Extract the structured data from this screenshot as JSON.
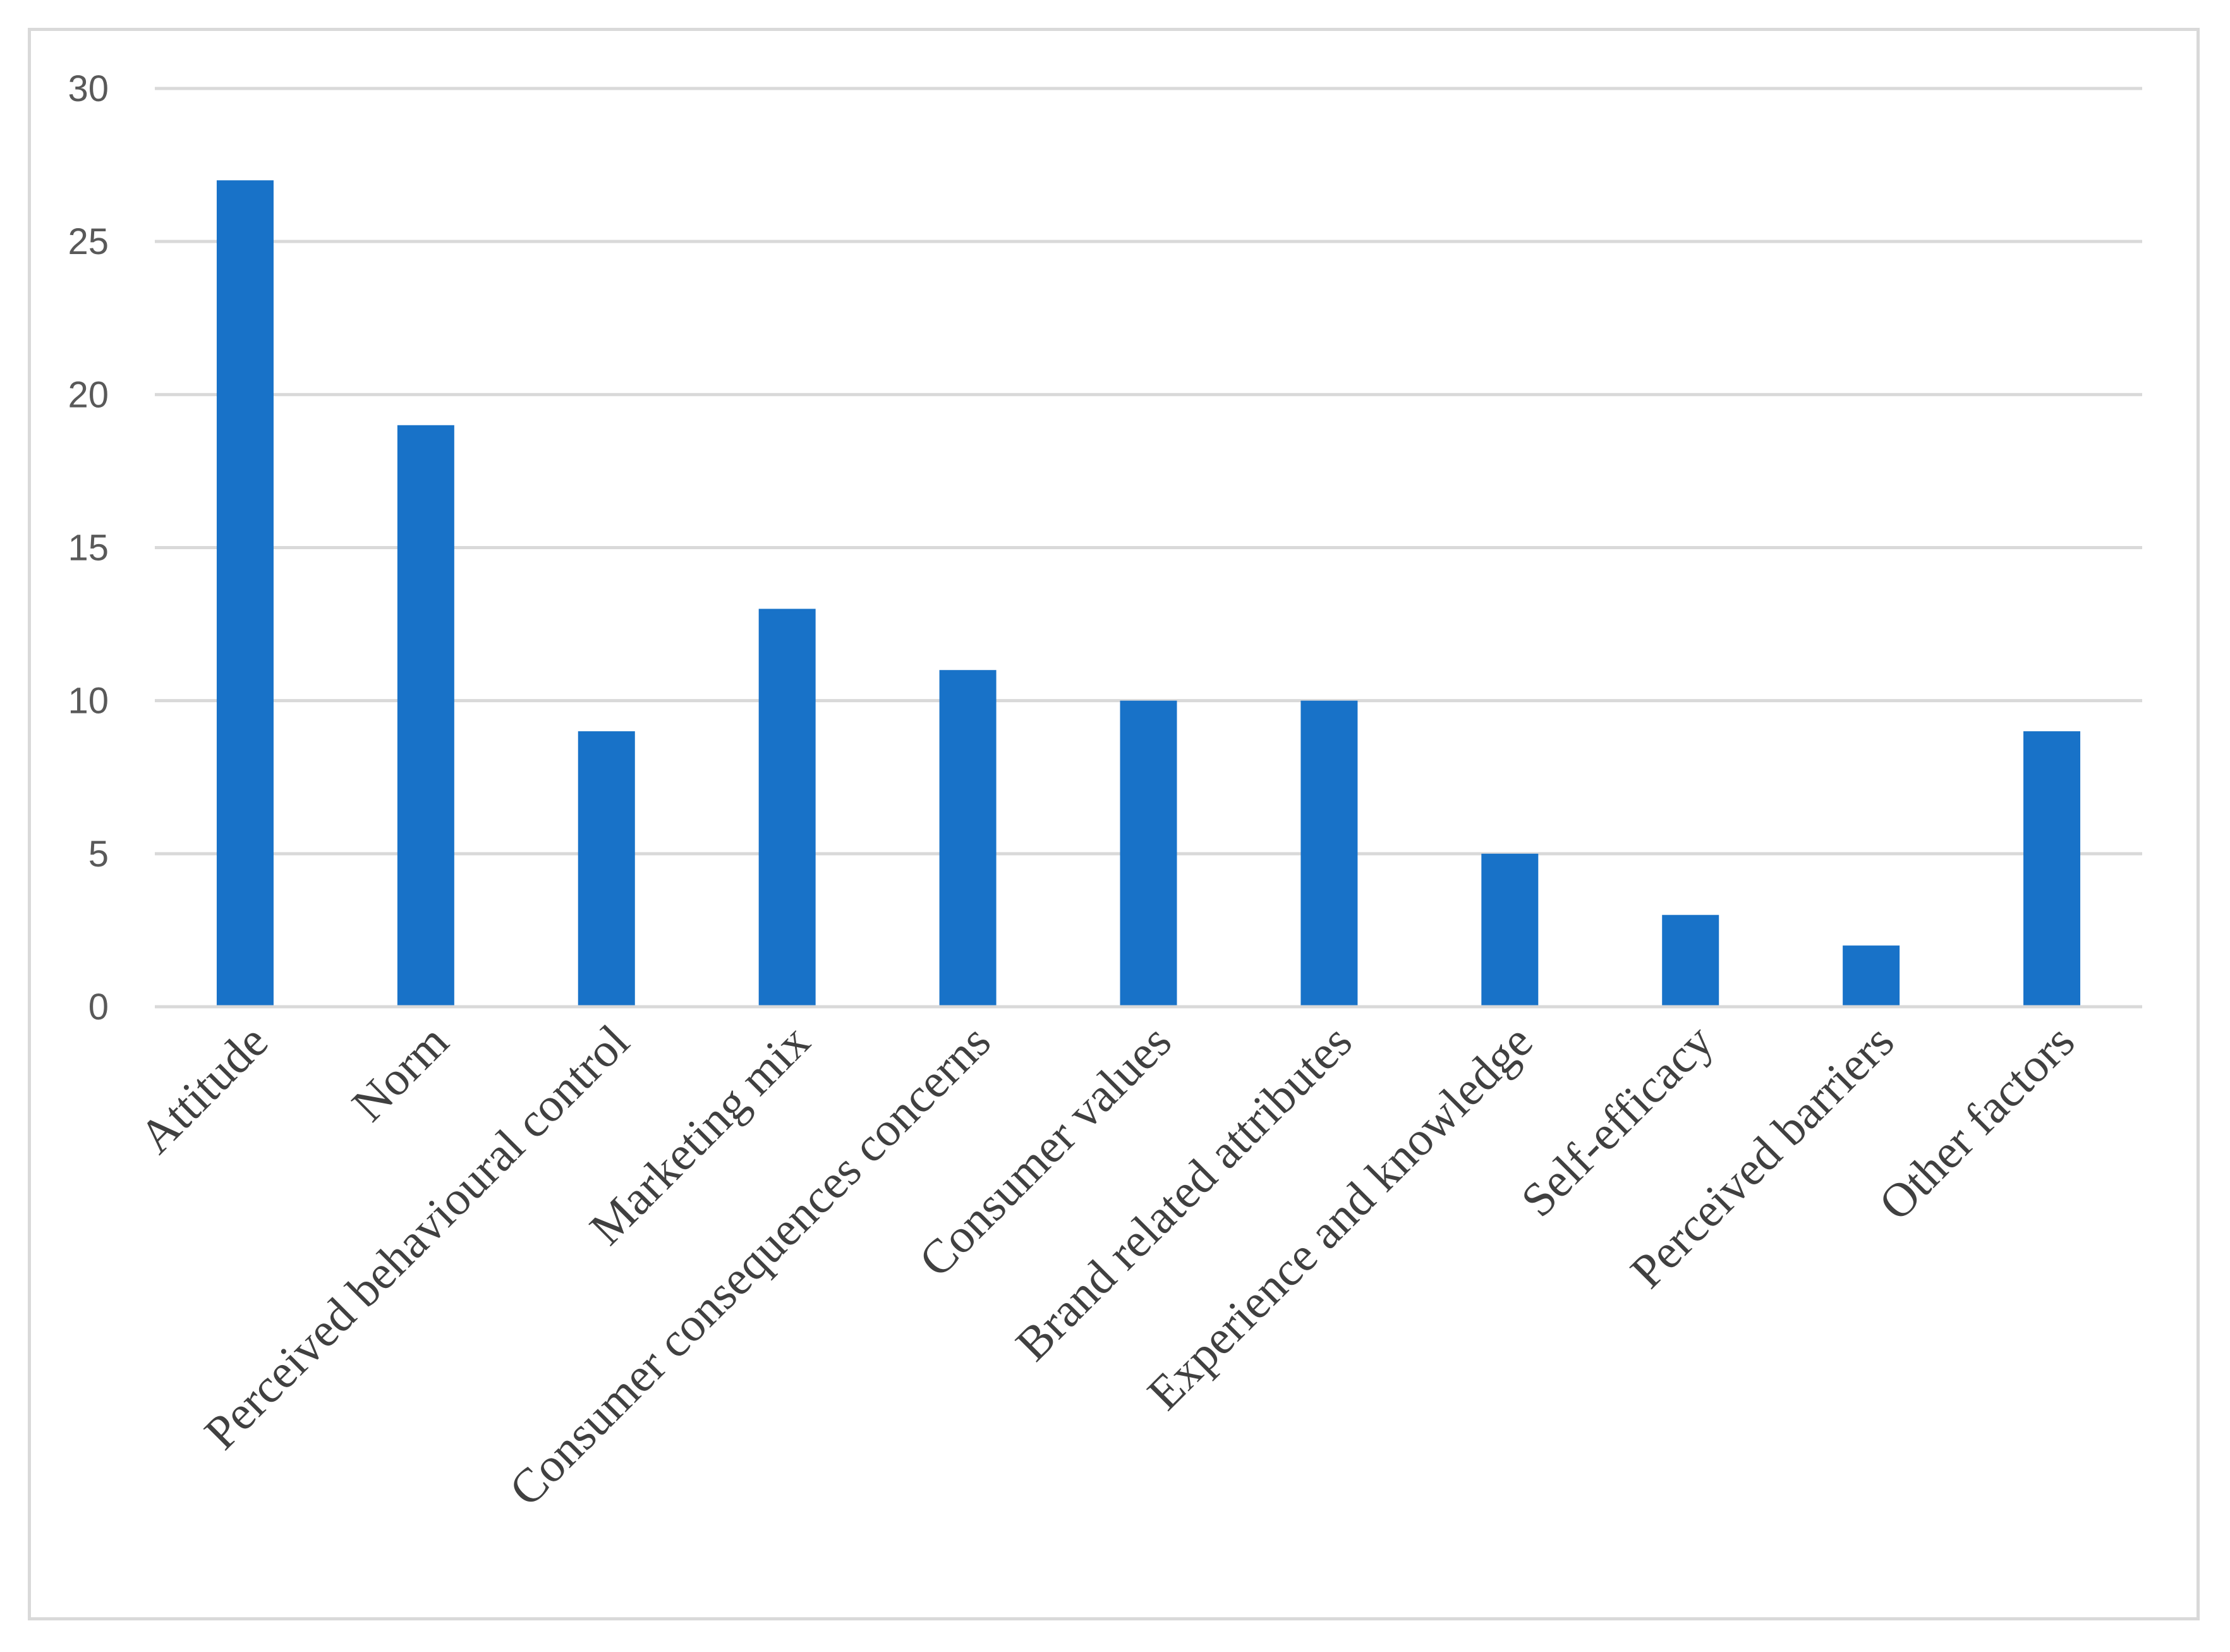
{
  "chart_data": {
    "type": "bar",
    "title": "",
    "xlabel": "",
    "ylabel": "",
    "categories": [
      "Attitude",
      "Norm",
      "Perceived behavioural control",
      "Marketing mix",
      "Consumer consequences concerns",
      "Consumer values",
      "Brand related attributes",
      "Experience and knowledge",
      "Self-efficacy",
      "Perceived barriers",
      "Other factors"
    ],
    "values": [
      27,
      19,
      9,
      13,
      11,
      10,
      10,
      5,
      3,
      2,
      9
    ],
    "ylim": [
      0,
      30
    ],
    "yticks": [
      "0",
      "5",
      "10",
      "15",
      "20",
      "25",
      "30"
    ],
    "grid": true,
    "legend": "none",
    "colors": {
      "bar": "#1872C8",
      "grid": "#d9d9d9",
      "axis": "#d9d9d9",
      "frame": "#d9d9d9"
    }
  }
}
